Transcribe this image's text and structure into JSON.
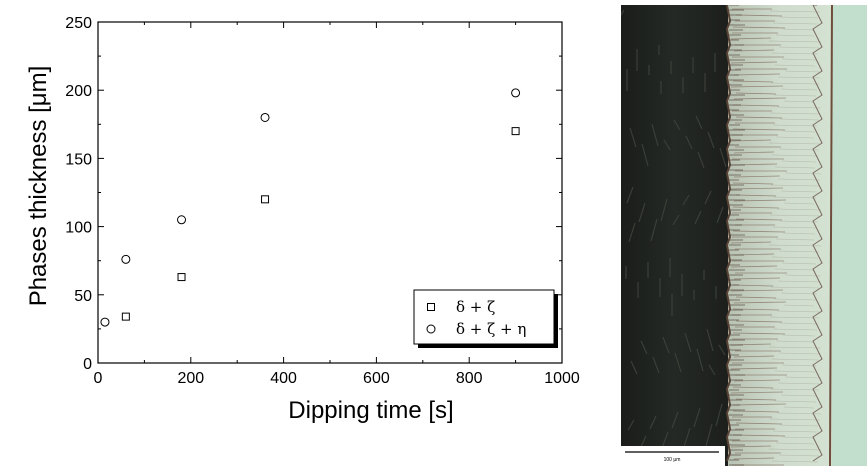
{
  "chart_data": {
    "type": "scatter",
    "xlabel": "Dipping time [s]",
    "ylabel": "Phases thickness [μm]",
    "xlim": [
      0,
      1000
    ],
    "ylim": [
      0,
      250
    ],
    "x_ticks": [
      "0",
      "200",
      "400",
      "600",
      "800",
      "1000"
    ],
    "y_ticks": [
      "0",
      "50",
      "100",
      "150",
      "200",
      "250"
    ],
    "grid": false,
    "legend_position": "bottom-right",
    "series": [
      {
        "name": "δ + ζ",
        "marker": "square",
        "x": [
          60,
          180,
          360,
          900
        ],
        "y": [
          34,
          63,
          120,
          170
        ]
      },
      {
        "name": "δ + ζ + η",
        "marker": "circle",
        "x": [
          15,
          60,
          180,
          360,
          900
        ],
        "y": [
          30,
          76,
          105,
          180,
          198
        ]
      }
    ]
  },
  "micrograph": {
    "scale_bar_label": "100 μm",
    "colors": {
      "substrate": "#1e211e",
      "coating": "#c9d8c8",
      "phase_lines": "#6a4a3a",
      "mount": "#bcdcc8"
    }
  }
}
